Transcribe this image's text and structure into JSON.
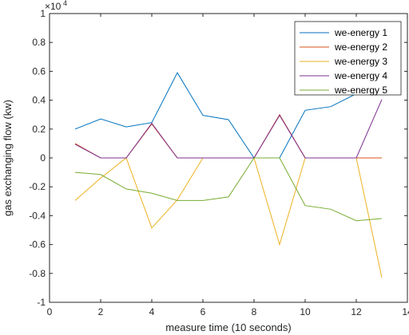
{
  "chart_data": {
    "type": "line",
    "title": "",
    "xlabel": "measure time (10 seconds)",
    "ylabel": "gas exchanging flow (kw)",
    "xlim": [
      0,
      14
    ],
    "ylim": [
      -10000,
      10000
    ],
    "x_ticks": [
      "0",
      "2",
      "4",
      "6",
      "8",
      "10",
      "12",
      "14"
    ],
    "y_ticks": [
      "-1",
      "-0.8",
      "-0.6",
      "-0.4",
      "-0.2",
      "0",
      "0.2",
      "0.4",
      "0.6",
      "0.8",
      "1"
    ],
    "y_exponent_base": "×10",
    "y_exponent_power": "4",
    "grid": false,
    "legend_position": "top-right",
    "x": [
      1,
      2,
      3,
      4,
      5,
      6,
      7,
      8,
      9,
      10,
      11,
      12,
      13
    ],
    "series": [
      {
        "name": "we-energy 1",
        "color": "#0072BD",
        "values": [
          2000,
          2700,
          2150,
          2450,
          5900,
          2950,
          2650,
          0,
          0,
          3300,
          3550,
          4450,
          4900
        ]
      },
      {
        "name": "we-energy 2",
        "color": "#D95319",
        "values": [
          1000,
          0,
          0,
          2350,
          0,
          0,
          0,
          0,
          3000,
          0,
          0,
          0,
          0
        ]
      },
      {
        "name": "we-energy 3",
        "color": "#EDB120",
        "values": [
          -2950,
          -1400,
          0,
          -4850,
          -2900,
          0,
          0,
          0,
          -6000,
          0,
          0,
          0,
          -8300
        ]
      },
      {
        "name": "we-energy 4",
        "color": "#7E2F8E",
        "values": [
          950,
          0,
          0,
          2400,
          0,
          0,
          0,
          0,
          2950,
          0,
          0,
          0,
          4050
        ]
      },
      {
        "name": "we-energy 5",
        "color": "#77AC30",
        "values": [
          -1000,
          -1150,
          -2150,
          -2450,
          -2950,
          -2950,
          -2700,
          0,
          0,
          -3300,
          -3550,
          -4350,
          -4200
        ]
      }
    ]
  }
}
